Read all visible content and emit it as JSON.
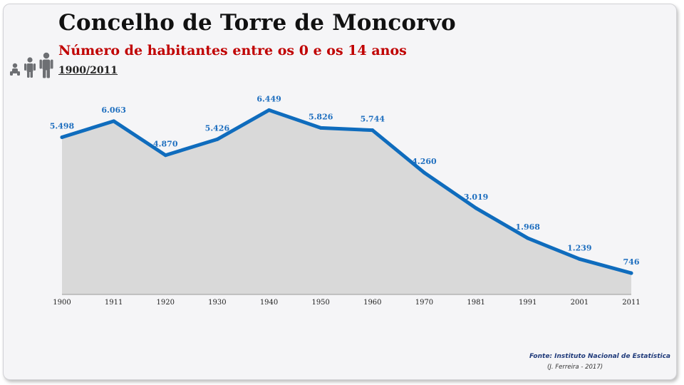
{
  "header": {
    "title": "Concelho de Torre de Moncorvo",
    "subtitle": "Número de habitantes entre os 0 e os 14 anos",
    "period": "1900/2011"
  },
  "icons": [
    "baby-icon",
    "child-icon",
    "adult-icon"
  ],
  "footer": {
    "source": "Fonte: Instituto Nacional de Estatística",
    "author": "(J. Ferreira - 2017)"
  },
  "colors": {
    "line": "#0f6cbd",
    "area": "#d9d9d9",
    "subtitle": "#c00000",
    "label": "#1f6fbf"
  },
  "chart_data": {
    "type": "area",
    "categories": [
      "1900",
      "1911",
      "1920",
      "1930",
      "1940",
      "1950",
      "1960",
      "1970",
      "1981",
      "1991",
      "2001",
      "2011"
    ],
    "values": [
      5498,
      6063,
      4870,
      5426,
      6449,
      5826,
      5744,
      4260,
      3019,
      1968,
      1239,
      746
    ],
    "data_labels": [
      "5.498",
      "6.063",
      "4.870",
      "5.426",
      "6.449",
      "5.826",
      "5.744",
      "4.260",
      "3.019",
      "1.968",
      "1.239",
      "746"
    ],
    "title": "Concelho de Torre de Moncorvo",
    "subtitle": "Número de habitantes entre os 0 e os 14 anos",
    "xlabel": "",
    "ylabel": "",
    "grid": false,
    "legend": "none"
  }
}
